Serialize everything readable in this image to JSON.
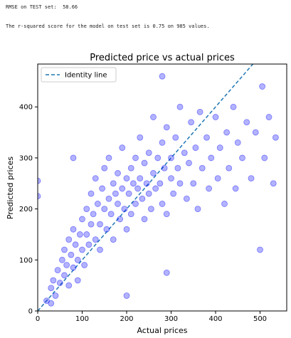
{
  "output_lines": [
    "RMSE on TEST set:  58.66",
    "The r-squared score for the model on test set is 0.75 on 985 values."
  ],
  "chart_data": {
    "type": "scatter",
    "title": "Predicted price vs actual prices",
    "x_label": "Actual prices",
    "y_label": "Predicted prices",
    "xlim": [
      0,
      560
    ],
    "ylim": [
      0,
      484
    ],
    "xticks": [
      0,
      100,
      200,
      300,
      400,
      500
    ],
    "yticks": [
      0,
      100,
      200,
      300,
      400
    ],
    "grid": false,
    "legend": "upper left",
    "series": [
      {
        "name": "Identity line",
        "type": "line",
        "color": "#1f77b4",
        "x": [
          0,
          484
        ],
        "values": [
          0,
          484
        ]
      },
      {
        "type": "scatter",
        "color": "#0000ff",
        "x": [
          20,
          30,
          35,
          40,
          45,
          50,
          55,
          60,
          60,
          65,
          70,
          70,
          75,
          80,
          80,
          85,
          90,
          90,
          95,
          100,
          100,
          105,
          110,
          110,
          115,
          120,
          120,
          125,
          130,
          130,
          135,
          140,
          140,
          145,
          150,
          150,
          155,
          160,
          160,
          165,
          170,
          170,
          175,
          180,
          180,
          185,
          190,
          190,
          195,
          200,
          200,
          205,
          210,
          210,
          215,
          220,
          220,
          225,
          230,
          230,
          235,
          240,
          240,
          245,
          250,
          250,
          255,
          260,
          260,
          265,
          270,
          275,
          280,
          280,
          285,
          290,
          290,
          300,
          300,
          305,
          310,
          315,
          320,
          320,
          330,
          335,
          340,
          345,
          350,
          355,
          360,
          365,
          370,
          380,
          385,
          390,
          400,
          405,
          410,
          420,
          425,
          430,
          440,
          445,
          450,
          460,
          470,
          480,
          490,
          500,
          505,
          510,
          520,
          530,
          535,
          0,
          0,
          30,
          200,
          290,
          80,
          280
        ],
        "values": [
          20,
          45,
          60,
          30,
          80,
          55,
          100,
          70,
          120,
          90,
          140,
          50,
          110,
          85,
          160,
          130,
          100,
          60,
          150,
          120,
          180,
          90,
          200,
          150,
          130,
          170,
          230,
          190,
          140,
          260,
          210,
          170,
          120,
          240,
          200,
          280,
          160,
          220,
          300,
          190,
          250,
          140,
          230,
          210,
          270,
          180,
          240,
          320,
          200,
          260,
          160,
          230,
          280,
          190,
          250,
          300,
          210,
          240,
          260,
          340,
          220,
          290,
          180,
          250,
          310,
          230,
          200,
          270,
          380,
          240,
          300,
          250,
          330,
          210,
          280,
          360,
          190,
          260,
          300,
          230,
          340,
          280,
          250,
          400,
          310,
          220,
          290,
          370,
          250,
          320,
          200,
          390,
          280,
          340,
          240,
          300,
          380,
          260,
          320,
          210,
          350,
          280,
          400,
          240,
          330,
          300,
          370,
          260,
          350,
          120,
          440,
          300,
          380,
          250,
          340,
          255,
          225,
          15,
          30,
          75,
          300,
          460
        ]
      }
    ]
  }
}
